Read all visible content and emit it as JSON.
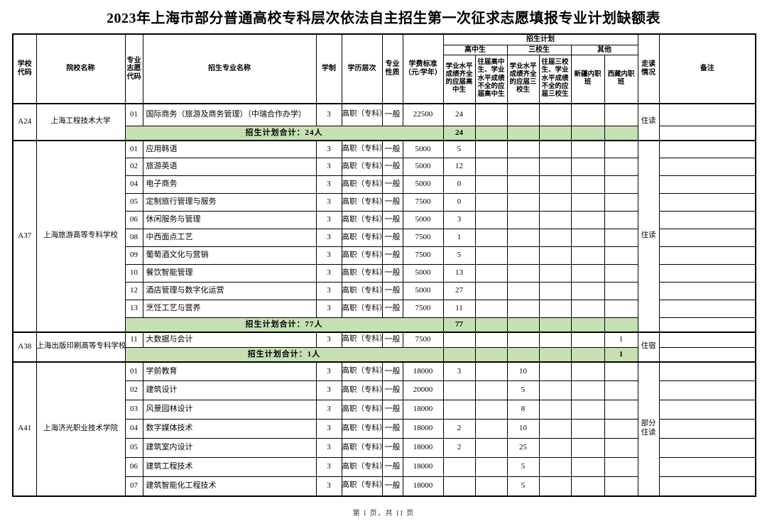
{
  "title": "2023年上海市部分普通高校专科层次依法自主招生第一次征求志愿填报专业计划缺额表",
  "footer": {
    "page_info": "第 1 页，共 11 页"
  },
  "colors": {
    "total_row_bg": "#c6e0b4",
    "border": "#000000"
  },
  "table": {
    "headers": {
      "school_code": "学校代码",
      "school_name": "院校名称",
      "major_code": "专业志愿代码",
      "major_name": "招生专业名称",
      "duration": "学制",
      "edu_level": "学历层次",
      "major_type": "专业性质",
      "tuition": "学费标准（元/学年）",
      "plan_group": "招生计划",
      "hs_group": "高中生",
      "sx_group": "三校生",
      "other_group": "其他",
      "plan_cols": [
        "学业水平成绩齐全的应届高中生",
        "往届高中生、学业水平成绩不全的应届高中生",
        "学业水平成绩齐全的应届三校生",
        "往届三校生、学业水平成绩不全的应届三校生",
        "新疆内职班",
        "西藏内职班"
      ],
      "residence": "走读情况",
      "remarks": "备注"
    },
    "schools": [
      {
        "code": "A24",
        "name": "上海工程技术大学",
        "residence": "住读",
        "majors": [
          {
            "code": "01",
            "name": "国际商务（旅游及商务管理）（中瑞合作办学）",
            "duration": "3",
            "level": "高职（专科）",
            "type": "一般",
            "tuition": "22500",
            "plans": [
              "24",
              "",
              "",
              "",
              "",
              ""
            ]
          }
        ],
        "total_label": "招生计划合计：24人",
        "total_plans": [
          "24",
          "",
          "",
          "",
          "",
          ""
        ]
      },
      {
        "code": "A37",
        "name": "上海旅游高等专科学校",
        "residence": "住读",
        "majors": [
          {
            "code": "01",
            "name": "应用韩语",
            "duration": "3",
            "level": "高职（专科）",
            "type": "一般",
            "tuition": "5000",
            "plans": [
              "5",
              "",
              "",
              "",
              "",
              ""
            ]
          },
          {
            "code": "02",
            "name": "旅游英语",
            "duration": "3",
            "level": "高职（专科）",
            "type": "一般",
            "tuition": "5000",
            "plans": [
              "12",
              "",
              "",
              "",
              "",
              ""
            ]
          },
          {
            "code": "04",
            "name": "电子商务",
            "duration": "3",
            "level": "高职（专科）",
            "type": "一般",
            "tuition": "5000",
            "plans": [
              "0",
              "",
              "",
              "",
              "",
              ""
            ]
          },
          {
            "code": "05",
            "name": "定制旅行管理与服务",
            "duration": "3",
            "level": "高职（专科）",
            "type": "一般",
            "tuition": "7500",
            "plans": [
              "0",
              "",
              "",
              "",
              "",
              ""
            ]
          },
          {
            "code": "06",
            "name": "休闲服务与管理",
            "duration": "3",
            "level": "高职（专科）",
            "type": "一般",
            "tuition": "5000",
            "plans": [
              "3",
              "",
              "",
              "",
              "",
              ""
            ]
          },
          {
            "code": "08",
            "name": "中西面点工艺",
            "duration": "3",
            "level": "高职（专科）",
            "type": "一般",
            "tuition": "7500",
            "plans": [
              "1",
              "",
              "",
              "",
              "",
              ""
            ]
          },
          {
            "code": "09",
            "name": "葡萄酒文化与营销",
            "duration": "3",
            "level": "高职（专科）",
            "type": "一般",
            "tuition": "7500",
            "plans": [
              "5",
              "",
              "",
              "",
              "",
              ""
            ]
          },
          {
            "code": "10",
            "name": "餐饮智能管理",
            "duration": "3",
            "level": "高职（专科）",
            "type": "一般",
            "tuition": "5000",
            "plans": [
              "13",
              "",
              "",
              "",
              "",
              ""
            ]
          },
          {
            "code": "12",
            "name": "酒店管理与数字化运营",
            "duration": "3",
            "level": "高职（专科）",
            "type": "一般",
            "tuition": "5000",
            "plans": [
              "27",
              "",
              "",
              "",
              "",
              ""
            ]
          },
          {
            "code": "13",
            "name": "烹饪工艺与营养",
            "duration": "3",
            "level": "高职（专科）",
            "type": "一般",
            "tuition": "7500",
            "plans": [
              "11",
              "",
              "",
              "",
              "",
              ""
            ]
          }
        ],
        "total_label": "招生计划合计：77人",
        "total_plans": [
          "77",
          "",
          "",
          "",
          "",
          ""
        ]
      },
      {
        "code": "A38",
        "name": "上海出版印刷高等专科学校",
        "residence": "住宿",
        "majors": [
          {
            "code": "11",
            "name": "大数据与会计",
            "duration": "3",
            "level": "高职（专科）",
            "type": "一般",
            "tuition": "7500",
            "plans": [
              "",
              "",
              "",
              "",
              "",
              "1"
            ]
          }
        ],
        "total_label": "招生计划合计：1人",
        "total_plans": [
          "",
          "",
          "",
          "",
          "",
          "1"
        ]
      },
      {
        "code": "A41",
        "name": "上海济光职业技术学院",
        "residence": "部分住读",
        "majors": [
          {
            "code": "01",
            "name": "学前教育",
            "duration": "3",
            "level": "高职（专科）",
            "type": "一般",
            "tuition": "18000",
            "plans": [
              "3",
              "",
              "10",
              "",
              "",
              ""
            ]
          },
          {
            "code": "02",
            "name": "建筑设计",
            "duration": "3",
            "level": "高职（专科）",
            "type": "一般",
            "tuition": "20000",
            "plans": [
              "",
              "",
              "5",
              "",
              "",
              ""
            ]
          },
          {
            "code": "03",
            "name": "风景园林设计",
            "duration": "3",
            "level": "高职（专科）",
            "type": "一般",
            "tuition": "18000",
            "plans": [
              "",
              "",
              "8",
              "",
              "",
              ""
            ]
          },
          {
            "code": "04",
            "name": "数字媒体技术",
            "duration": "3",
            "level": "高职（专科）",
            "type": "一般",
            "tuition": "18000",
            "plans": [
              "2",
              "",
              "10",
              "",
              "",
              ""
            ]
          },
          {
            "code": "05",
            "name": "建筑室内设计",
            "duration": "3",
            "level": "高职（专科）",
            "type": "一般",
            "tuition": "18000",
            "plans": [
              "2",
              "",
              "25",
              "",
              "",
              ""
            ]
          },
          {
            "code": "06",
            "name": "建筑工程技术",
            "duration": "3",
            "level": "高职（专科）",
            "type": "一般",
            "tuition": "18000",
            "plans": [
              "",
              "",
              "5",
              "",
              "",
              ""
            ]
          },
          {
            "code": "07",
            "name": "建筑智能化工程技术",
            "duration": "3",
            "level": "高职（专科）",
            "type": "一般",
            "tuition": "18000",
            "plans": [
              "",
              "",
              "5",
              "",
              "",
              ""
            ]
          }
        ],
        "total_label": null,
        "total_plans": null
      }
    ]
  }
}
